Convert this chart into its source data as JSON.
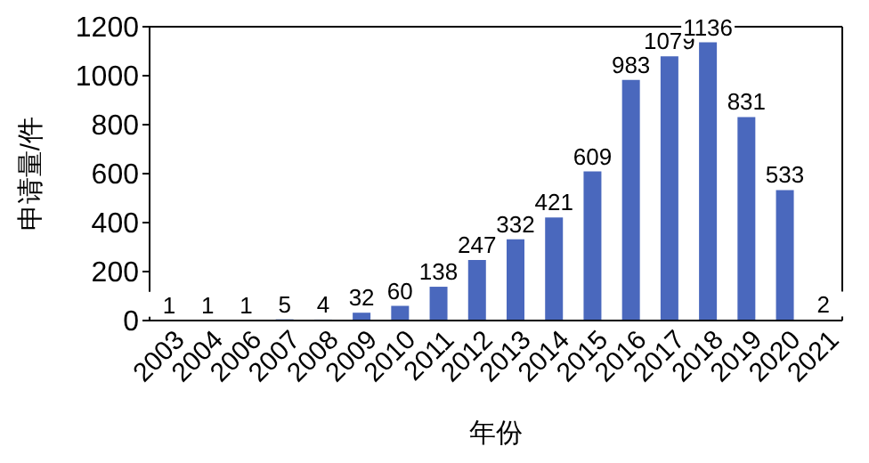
{
  "chart_data": {
    "type": "bar",
    "xlabel": "年份",
    "ylabel": "申请量/件",
    "categories": [
      "2003",
      "2004",
      "2006",
      "2007",
      "2008",
      "2009",
      "2010",
      "2011",
      "2012",
      "2013",
      "2014",
      "2015",
      "2016",
      "2017",
      "2018",
      "2019",
      "2020",
      "2021"
    ],
    "values": [
      1,
      1,
      1,
      5,
      4,
      32,
      60,
      138,
      247,
      332,
      421,
      609,
      983,
      1079,
      1136,
      831,
      533,
      2
    ],
    "color": "#4a68bd",
    "ylim": [
      0,
      1200
    ],
    "yticks": [
      0,
      200,
      400,
      600,
      800,
      1000,
      1200
    ],
    "data_labels": true
  }
}
